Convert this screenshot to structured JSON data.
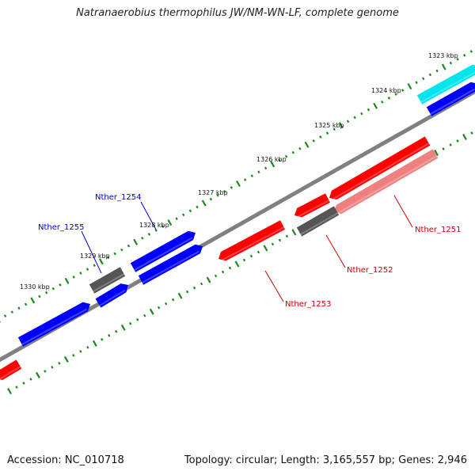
{
  "title": "Natranaerobius thermophilus JW/NM-WN-LF, complete genome",
  "accession_text": "Accession: NC_010718",
  "summary_text": "Topology: circular; Length: 3,165,557 bp; Genes: 2,946",
  "colors": {
    "backbone": "#808080",
    "tick": "#1a8a1a",
    "forward_gene": "#0000ff",
    "reverse_gene": "#ff0000",
    "reverse_gene_light": "#ee8080",
    "other_gene": "#555555",
    "highlight_gene": "#00e5ee",
    "forward_label": "#0000cc",
    "reverse_label": "#cc0000"
  },
  "kbp_ticks": [
    "1323 kbp",
    "1324 kbp",
    "1325 kbp",
    "1326 kbp",
    "1327 kbp",
    "1328 kbp",
    "1329 kbp",
    "1330 kbp"
  ],
  "gene_labels": [
    {
      "name": "Nther_1251",
      "strand": "reverse"
    },
    {
      "name": "Nther_1252",
      "strand": "reverse"
    },
    {
      "name": "Nther_1253",
      "strand": "reverse"
    },
    {
      "name": "Nther_1254",
      "strand": "forward"
    },
    {
      "name": "Nther_1255",
      "strand": "forward"
    }
  ]
}
